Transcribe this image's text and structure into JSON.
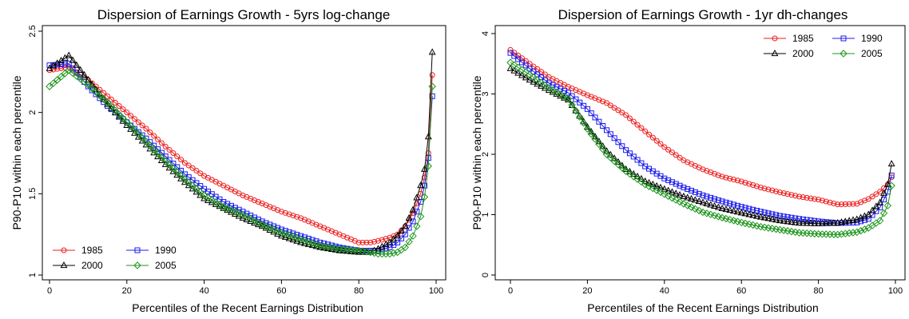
{
  "chart_data": [
    {
      "type": "line",
      "title": "Dispersion of Earnings Growth - 5yrs log-change",
      "xlabel": "Percentiles of the Recent Earnings Distribution",
      "ylabel": "P90-P10 within each percentile",
      "xlim": [
        0,
        100
      ],
      "ylim": [
        1,
        2.5
      ],
      "xticks": [
        "0",
        "20",
        "40",
        "60",
        "80",
        "100"
      ],
      "yticks": [
        "1",
        "1.5",
        "2",
        "2.5"
      ],
      "legend_position": "bottom-left",
      "grid": false,
      "x_keys": [
        0,
        5,
        10,
        15,
        20,
        25,
        30,
        35,
        40,
        45,
        50,
        55,
        60,
        65,
        70,
        75,
        80,
        83,
        85,
        88,
        90,
        92,
        94,
        96,
        97,
        98,
        99
      ],
      "series": [
        {
          "name": "1985",
          "color": "#ee1c1c",
          "marker": "circle",
          "values": [
            2.26,
            2.28,
            2.2,
            2.1,
            2.0,
            1.9,
            1.79,
            1.69,
            1.61,
            1.55,
            1.49,
            1.44,
            1.39,
            1.35,
            1.3,
            1.25,
            1.2,
            1.2,
            1.21,
            1.23,
            1.25,
            1.3,
            1.38,
            1.5,
            1.6,
            1.75,
            2.23
          ]
        },
        {
          "name": "1990",
          "color": "#1c1cee",
          "marker": "square",
          "values": [
            2.29,
            2.3,
            2.16,
            2.04,
            1.94,
            1.84,
            1.73,
            1.62,
            1.53,
            1.45,
            1.39,
            1.33,
            1.28,
            1.24,
            1.2,
            1.17,
            1.15,
            1.15,
            1.15,
            1.17,
            1.2,
            1.25,
            1.33,
            1.45,
            1.55,
            1.72,
            2.1
          ]
        },
        {
          "name": "2000",
          "color": "#000000",
          "marker": "triangle",
          "values": [
            2.27,
            2.35,
            2.2,
            2.05,
            1.92,
            1.8,
            1.68,
            1.57,
            1.47,
            1.41,
            1.35,
            1.3,
            1.24,
            1.2,
            1.17,
            1.15,
            1.14,
            1.14,
            1.16,
            1.2,
            1.24,
            1.3,
            1.4,
            1.55,
            1.65,
            1.85,
            2.37
          ]
        },
        {
          "name": "2005",
          "color": "#1c961c",
          "marker": "diamond",
          "values": [
            2.16,
            2.26,
            2.17,
            2.06,
            1.94,
            1.82,
            1.7,
            1.59,
            1.49,
            1.42,
            1.37,
            1.31,
            1.26,
            1.22,
            1.18,
            1.16,
            1.15,
            1.14,
            1.13,
            1.13,
            1.14,
            1.17,
            1.24,
            1.36,
            1.48,
            1.67,
            2.16
          ]
        }
      ]
    },
    {
      "type": "line",
      "title": "Dispersion of Earnings Growth - 1yr dh-changes",
      "xlabel": "Percentiles of the Recent Earnings Distribution",
      "ylabel": "P90-P10 within each percentile",
      "xlim": [
        0,
        100
      ],
      "ylim": [
        0,
        4
      ],
      "xticks": [
        "0",
        "20",
        "40",
        "60",
        "80",
        "100"
      ],
      "yticks": [
        "0",
        "1",
        "2",
        "3",
        "4"
      ],
      "legend_position": "top-right",
      "grid": false,
      "x_keys": [
        0,
        5,
        10,
        15,
        20,
        25,
        30,
        35,
        40,
        45,
        50,
        55,
        60,
        65,
        70,
        75,
        80,
        85,
        90,
        93,
        96,
        98,
        99
      ],
      "series": [
        {
          "name": "1985",
          "color": "#ee1c1c",
          "marker": "circle",
          "values": [
            3.73,
            3.5,
            3.28,
            3.12,
            2.98,
            2.85,
            2.65,
            2.38,
            2.12,
            1.9,
            1.75,
            1.63,
            1.55,
            1.45,
            1.37,
            1.3,
            1.25,
            1.17,
            1.18,
            1.26,
            1.38,
            1.5,
            1.62
          ]
        },
        {
          "name": "1990",
          "color": "#1c1cee",
          "marker": "square",
          "values": [
            3.68,
            3.42,
            3.18,
            3.02,
            2.75,
            2.4,
            2.07,
            1.8,
            1.6,
            1.45,
            1.32,
            1.22,
            1.13,
            1.05,
            0.98,
            0.93,
            0.89,
            0.86,
            0.87,
            0.93,
            1.12,
            1.38,
            1.65
          ]
        },
        {
          "name": "2000",
          "color": "#000000",
          "marker": "triangle",
          "values": [
            3.42,
            3.23,
            3.06,
            2.9,
            2.45,
            2.05,
            1.75,
            1.55,
            1.42,
            1.3,
            1.2,
            1.1,
            1.03,
            0.96,
            0.9,
            0.86,
            0.85,
            0.86,
            0.92,
            1.0,
            1.2,
            1.5,
            1.84
          ]
        },
        {
          "name": "2005",
          "color": "#1c961c",
          "marker": "diamond",
          "values": [
            3.52,
            3.32,
            3.1,
            2.92,
            2.42,
            2.0,
            1.72,
            1.5,
            1.34,
            1.18,
            1.04,
            0.95,
            0.87,
            0.8,
            0.75,
            0.7,
            0.68,
            0.67,
            0.71,
            0.78,
            0.9,
            1.15,
            1.48
          ]
        }
      ]
    }
  ]
}
